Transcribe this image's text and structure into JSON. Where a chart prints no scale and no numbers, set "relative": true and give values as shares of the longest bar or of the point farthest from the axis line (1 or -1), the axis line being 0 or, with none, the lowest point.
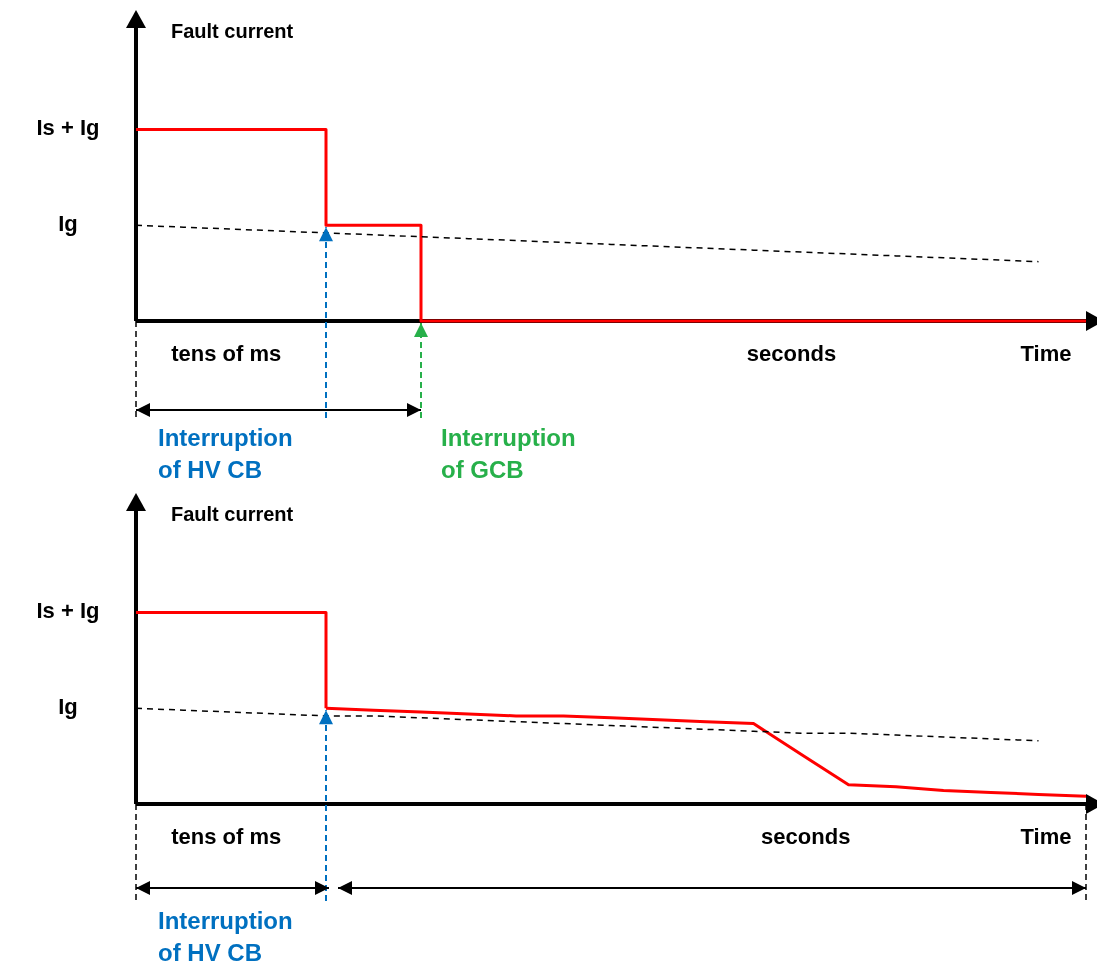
{
  "chart_data": [
    {
      "type": "line",
      "relative": true,
      "ylabel": "Fault current",
      "xlabel": "Time",
      "categories": [
        null,
        null,
        null,
        null,
        null,
        null,
        null,
        null,
        null,
        null,
        null,
        null,
        null,
        null,
        null,
        null,
        null,
        null,
        null,
        null,
        null
      ],
      "series": [
        {
          "type": "step",
          "color": "#ff0000",
          "values": [
            1,
            1,
            1,
            1,
            0.5,
            0.5,
            0,
            0,
            0,
            0,
            0,
            0,
            0,
            0,
            0,
            0,
            0,
            0,
            0,
            0,
            0
          ]
        },
        {
          "color": "#000000",
          "line_style": "dashed",
          "values": [
            0.5,
            0.49,
            0.48,
            0.47,
            0.46,
            0.45,
            0.44,
            0.43,
            0.42,
            0.41,
            0.4,
            0.39,
            0.38,
            0.37,
            0.36,
            0.35,
            0.34,
            0.33,
            0.32,
            0.31,
            null
          ]
        }
      ],
      "annotations": [
        "Is + Ig",
        "Ig",
        "tens of ms",
        "seconds",
        "Interruption of HV CB",
        "Interruption of GCB"
      ]
    },
    {
      "type": "line",
      "relative": true,
      "ylabel": "Fault current",
      "xlabel": "Time",
      "categories": [
        null,
        null,
        null,
        null,
        null,
        null,
        null,
        null,
        null,
        null,
        null,
        null,
        null,
        null,
        null,
        null,
        null,
        null,
        null,
        null,
        null
      ],
      "series": [
        {
          "type": "step",
          "color": "#ff0000",
          "values": [
            1,
            1,
            1,
            1,
            0.5,
            null,
            null,
            null,
            null,
            null,
            null,
            null,
            null,
            null,
            null,
            null,
            null,
            null,
            null,
            null,
            null
          ]
        },
        {
          "color": "#ff0000",
          "values": [
            null,
            null,
            null,
            null,
            0.5,
            0.49,
            0.48,
            0.47,
            0.46,
            0.46,
            0.45,
            0.44,
            0.43,
            0.42,
            0.26,
            0.1,
            0.09,
            0.07,
            0.06,
            0.05,
            0.04
          ]
        },
        {
          "color": "#000000",
          "line_style": "dashed",
          "values": [
            0.5,
            0.49,
            0.48,
            0.47,
            0.46,
            0.46,
            0.45,
            0.44,
            0.43,
            0.42,
            0.41,
            0.4,
            0.39,
            0.38,
            0.37,
            0.37,
            0.36,
            0.35,
            0.34,
            0.33,
            null
          ]
        }
      ],
      "annotations": [
        "Is + Ig",
        "Ig",
        "tens of ms",
        "seconds",
        "Interruption of HV CB"
      ]
    }
  ]
}
